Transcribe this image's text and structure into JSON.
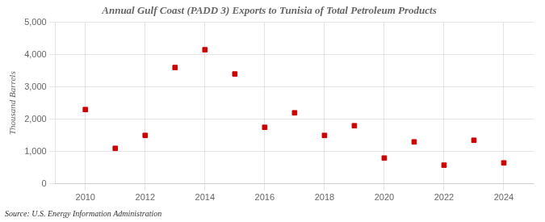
{
  "chart_data": {
    "type": "scatter",
    "title": "Annual Gulf Coast (PADD 3) Exports to Tunisia of Total Petroleum Products",
    "ylabel": "Thousand Barrels",
    "source": "Source: U.S. Energy Information Administration",
    "x": [
      2010,
      2011,
      2012,
      2013,
      2014,
      2015,
      2016,
      2017,
      2018,
      2019,
      2020,
      2021,
      2022,
      2023,
      2024
    ],
    "values": [
      2300,
      1100,
      1500,
      3600,
      4150,
      3400,
      1750,
      2200,
      1500,
      1800,
      800,
      1300,
      580,
      1350,
      650
    ],
    "color": "#cc0000",
    "marker": "square",
    "xlim": [
      2009,
      2025
    ],
    "xticks": [
      2010,
      2012,
      2014,
      2016,
      2018,
      2020,
      2022,
      2024
    ],
    "ylim": [
      0,
      5000
    ],
    "yticks": [
      0,
      {
        "value": 1000,
        "label": "1,000"
      },
      {
        "value": 2000,
        "label": "2,000"
      },
      {
        "value": 3000,
        "label": "3,000"
      },
      {
        "value": 4000,
        "label": "4,000"
      },
      {
        "value": 5000,
        "label": "5,000"
      }
    ],
    "grid": true
  }
}
